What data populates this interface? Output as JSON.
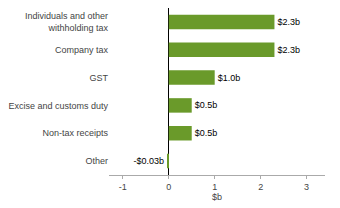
{
  "chart_data": {
    "type": "bar",
    "orientation": "horizontal",
    "categories": [
      "Individuals and other\nwithholding tax",
      "Company tax",
      "GST",
      "Excise and customs duty",
      "Non-tax receipts",
      "Other"
    ],
    "values": [
      2.3,
      2.3,
      1.0,
      0.5,
      0.5,
      -0.03
    ],
    "value_labels": [
      "$2.3b",
      "$2.3b",
      "$1.0b",
      "$0.5b",
      "$0.5b",
      "-$0.03b"
    ],
    "data_labels": true,
    "color": "#6a9a2a",
    "xlabel": "$b",
    "xlim": [
      -1.3,
      3.4
    ],
    "xticks": [
      -1,
      0,
      1,
      2,
      3
    ],
    "grid": false
  }
}
